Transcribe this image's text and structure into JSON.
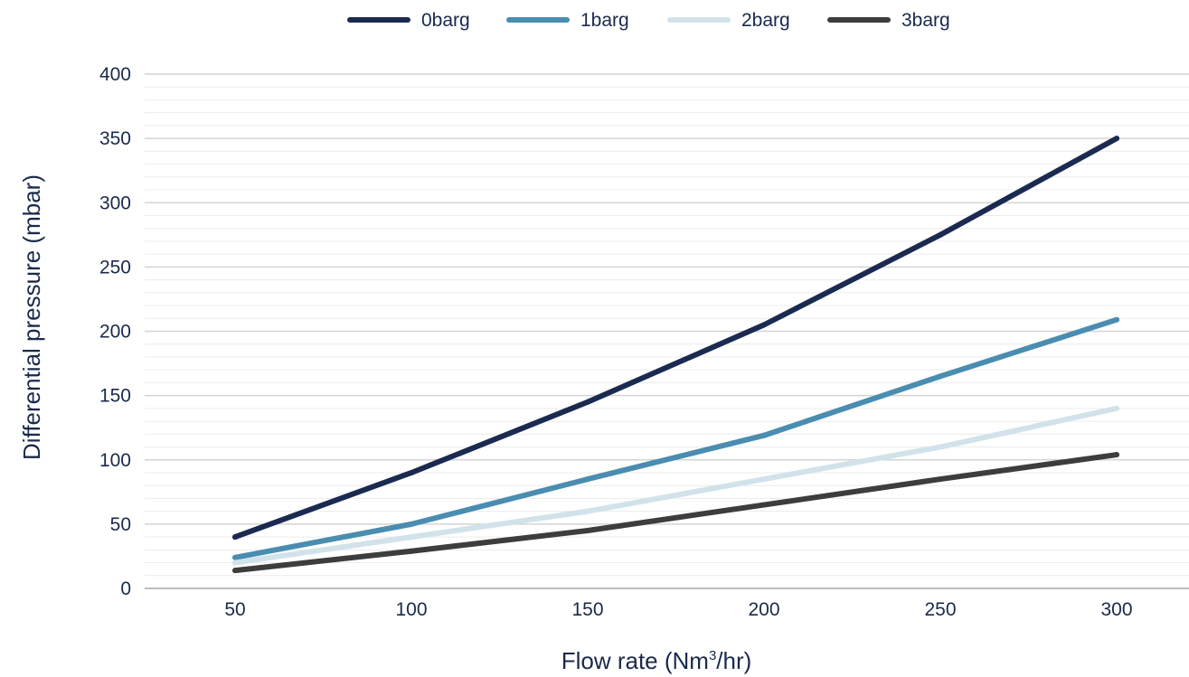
{
  "chart_data": {
    "type": "line",
    "title": "",
    "xlabel_parts": {
      "before": "Flow rate (Nm",
      "sup": "3",
      "after": "/hr)"
    },
    "ylabel": "Differential pressure (mbar)",
    "x": [
      50,
      100,
      150,
      200,
      250,
      300
    ],
    "x_tick_labels": [
      "50",
      "100",
      "150",
      "200",
      "250",
      "300"
    ],
    "ylim": [
      0,
      400
    ],
    "y_ticks": [
      0,
      50,
      100,
      150,
      200,
      250,
      300,
      350,
      400
    ],
    "y_tick_labels": [
      "0",
      "50",
      "100",
      "150",
      "200",
      "250",
      "300",
      "350",
      "400"
    ],
    "grid": true,
    "legend_position": "top-center",
    "series": [
      {
        "name": "0barg",
        "color": "#1b2a50",
        "values": [
          40,
          90,
          145,
          205,
          275,
          350
        ]
      },
      {
        "name": "1barg",
        "color": "#4a8db0",
        "values": [
          24,
          50,
          85,
          119,
          165,
          209
        ]
      },
      {
        "name": "2barg",
        "color": "#d2e2ea",
        "values": [
          20,
          40,
          60,
          85,
          110,
          140
        ]
      },
      {
        "name": "3barg",
        "color": "#3d3d3d",
        "values": [
          14,
          29,
          45,
          65,
          85,
          104
        ]
      }
    ]
  }
}
